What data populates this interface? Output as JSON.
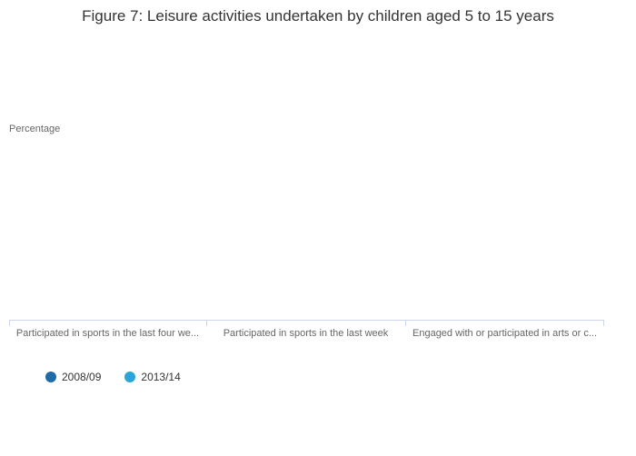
{
  "chart": {
    "title": "Figure 7: Leisure activities undertaken by children aged 5 to 15 years",
    "y_axis_title": "Percentage"
  },
  "axis": {
    "line_color": "#ccd6eb",
    "label_color": "#666666"
  },
  "legend": {
    "items": [
      {
        "label": "2008/09",
        "color": "#1f6ba8"
      },
      {
        "label": "2013/14",
        "color": "#29a5d9"
      }
    ]
  },
  "chart_data": {
    "type": "bar",
    "title": "Figure 7: Leisure activities undertaken by children aged 5 to 15 years",
    "xlabel": "",
    "ylabel": "Percentage",
    "categories": [
      "Participated in sports in the last four we...",
      "Participated in sports in the last week",
      "Engaged with or participated in arts or c..."
    ],
    "series": [
      {
        "name": "2008/09",
        "values": [
          null,
          null,
          null
        ]
      },
      {
        "name": "2013/14",
        "values": [
          null,
          null,
          null
        ]
      }
    ],
    "legend_position": "bottom-left",
    "grid": false,
    "y_axis_tick_labels_visible": false,
    "bars_rendered": false
  }
}
